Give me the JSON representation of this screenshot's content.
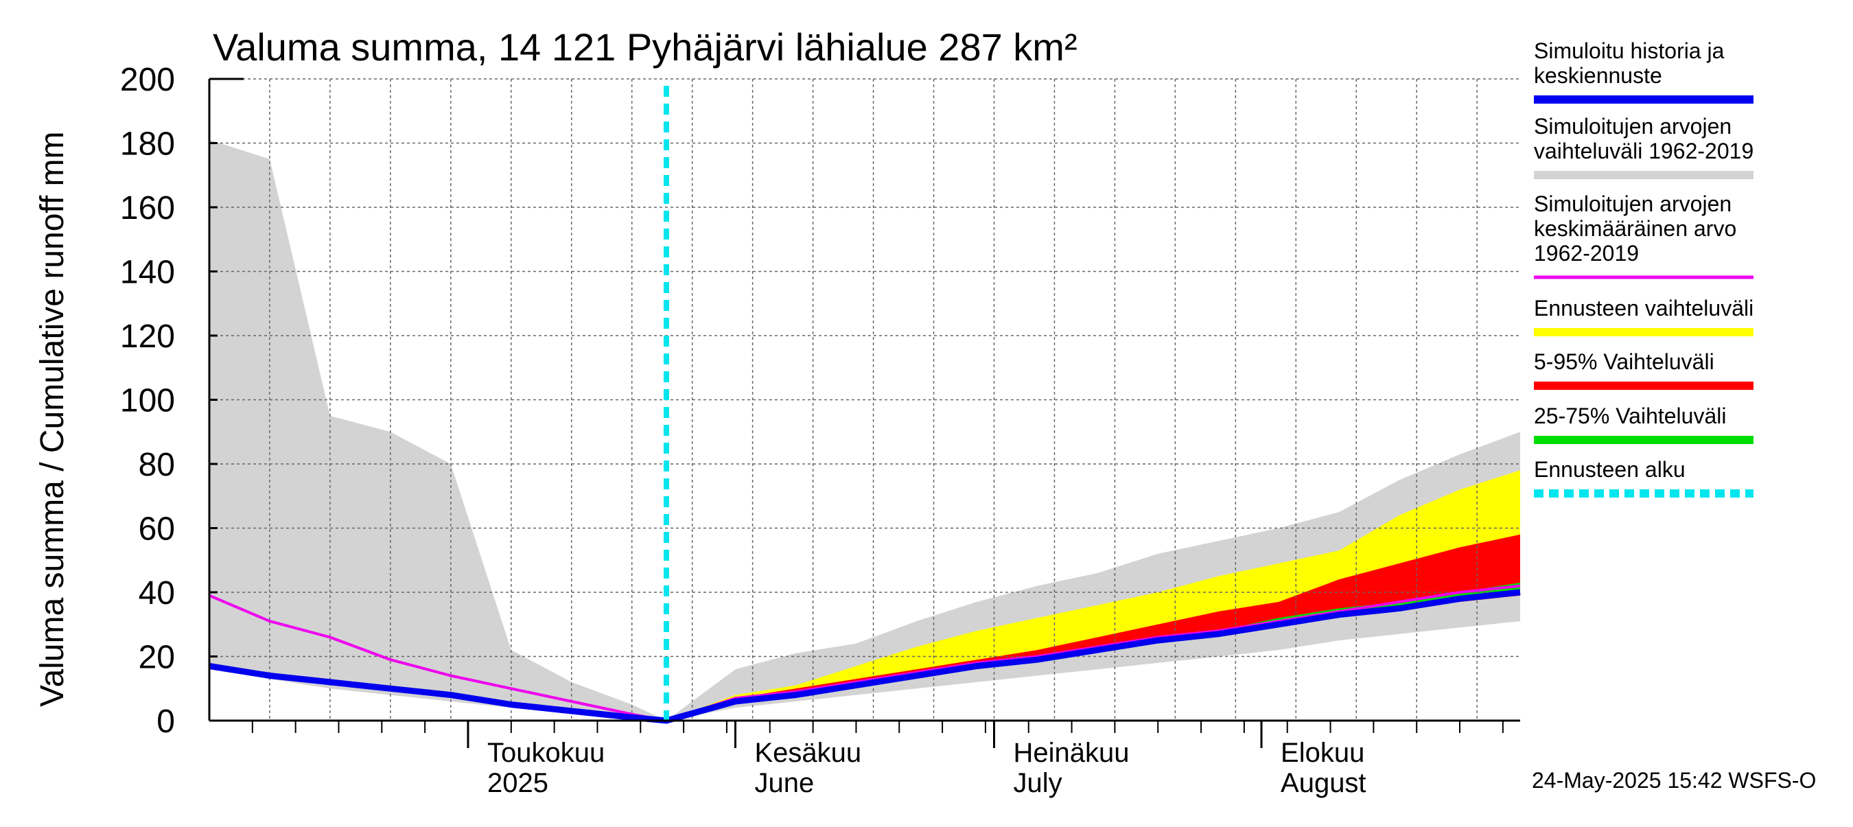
{
  "chart_data": {
    "type": "area",
    "title": "Valuma summa, 14 121 Pyhäjärvi lähialue 287 km²",
    "ylabel": "Valuma summa / Cumulative runoff    mm",
    "ylim": [
      0,
      200
    ],
    "yticks": [
      "0",
      "20",
      "40",
      "60",
      "80",
      "100",
      "120",
      "140",
      "160",
      "180",
      "200"
    ],
    "xlim": [
      "2025-04-01",
      "2025-08-31"
    ],
    "grid": true,
    "legend_placement": "right",
    "months": [
      {
        "date": "2025-05-01",
        "label1": "Toukokuu",
        "label2": "2025"
      },
      {
        "date": "2025-06-01",
        "label1": "Kesäkuu",
        "label2": "June"
      },
      {
        "date": "2025-07-01",
        "label1": "Heinäkuu",
        "label2": "July"
      },
      {
        "date": "2025-08-01",
        "label1": "Elokuu",
        "label2": "August"
      }
    ],
    "forecast_start": "2025-05-24",
    "x": [
      "2025-04-01",
      "2025-04-08",
      "2025-04-15",
      "2025-04-22",
      "2025-04-29",
      "2025-05-06",
      "2025-05-13",
      "2025-05-20",
      "2025-05-24",
      "2025-06-01",
      "2025-06-08",
      "2025-06-15",
      "2025-06-22",
      "2025-06-29",
      "2025-07-06",
      "2025-07-13",
      "2025-07-20",
      "2025-07-27",
      "2025-08-03",
      "2025-08-10",
      "2025-08-17",
      "2025-08-24",
      "2025-08-31"
    ],
    "series": [
      {
        "name": "Simuloitujen arvojen vaihteluväli 1962-2019",
        "kind": "band",
        "color": "#d3d3d3",
        "lower": [
          16,
          13,
          10,
          8,
          6,
          4,
          3,
          1,
          0,
          4,
          6,
          8,
          10,
          12,
          14,
          16,
          18,
          20,
          22,
          25,
          27,
          29,
          31
        ],
        "upper": [
          181,
          175,
          95,
          90,
          80,
          22,
          12,
          5,
          0,
          16,
          21,
          24,
          31,
          37,
          42,
          46,
          52,
          56,
          60,
          65,
          75,
          83,
          90
        ]
      },
      {
        "name": "Ennusteen vaihteluväli",
        "kind": "band",
        "color": "#ffff00",
        "lower": [
          null,
          null,
          null,
          null,
          null,
          null,
          null,
          null,
          0,
          6,
          8,
          11,
          14,
          17,
          19,
          22,
          25,
          27,
          30,
          33,
          35,
          37,
          39
        ],
        "upper": [
          null,
          null,
          null,
          null,
          null,
          null,
          null,
          null,
          0,
          8,
          11,
          17,
          23,
          28,
          32,
          36,
          40,
          45,
          49,
          53,
          64,
          72,
          78
        ]
      },
      {
        "name": "5-95% Vaihteluväli",
        "kind": "band",
        "color": "#ff0000",
        "lower": [
          null,
          null,
          null,
          null,
          null,
          null,
          null,
          null,
          0,
          6,
          8,
          11,
          14,
          17,
          19,
          22,
          25,
          27,
          30,
          33,
          35,
          37,
          39
        ],
        "upper": [
          null,
          null,
          null,
          null,
          null,
          null,
          null,
          null,
          0,
          7,
          10,
          13,
          16,
          19,
          22,
          26,
          30,
          34,
          37,
          44,
          49,
          54,
          58
        ]
      },
      {
        "name": "25-75% Vaihteluväli",
        "kind": "band",
        "color": "#00dd00",
        "lower": [
          null,
          null,
          null,
          null,
          null,
          null,
          null,
          null,
          0,
          6,
          8,
          11,
          14,
          17,
          19,
          22,
          25,
          27,
          30,
          33,
          35,
          38,
          40
        ],
        "upper": [
          null,
          null,
          null,
          null,
          null,
          null,
          null,
          null,
          0,
          6.5,
          9,
          12,
          14.5,
          17.5,
          20,
          23,
          26,
          28,
          32,
          35,
          37,
          40,
          43
        ]
      },
      {
        "name": "Simuloitujen arvojen keskimääräinen arvo 1962-2019",
        "kind": "line",
        "color": "#ee00ee",
        "width": 4,
        "values": [
          39,
          31,
          26,
          19,
          14,
          10,
          6,
          2,
          0,
          7,
          9,
          12,
          15,
          18,
          20,
          23,
          26,
          28,
          31,
          34,
          37,
          40,
          42
        ]
      },
      {
        "name": "Simuloitu historia ja keskiennuste",
        "kind": "line",
        "color": "#0000ee",
        "width": 9,
        "values": [
          17,
          14,
          12,
          10,
          8,
          5,
          3,
          1,
          0,
          6,
          8,
          11,
          14,
          17,
          19,
          22,
          25,
          27,
          30,
          33,
          35,
          38,
          40
        ]
      }
    ],
    "legend": [
      {
        "label": "Simuloitu historia ja keskiennuste",
        "color": "#0000ee",
        "style": "solid"
      },
      {
        "label": "Simuloitujen arvojen vaihteluväli 1962-2019",
        "color": "#d3d3d3",
        "style": "solid"
      },
      {
        "label": "Simuloitujen arvojen keskimääräinen arvo 1962-2019",
        "color": "#ee00ee",
        "style": "thin"
      },
      {
        "label": "Ennusteen vaihteluväli",
        "color": "#ffff00",
        "style": "solid"
      },
      {
        "label": "5-95% Vaihteluväli",
        "color": "#ff0000",
        "style": "solid"
      },
      {
        "label": "25-75% Vaihteluväli",
        "color": "#00dd00",
        "style": "solid"
      },
      {
        "label": "Ennusteen alku",
        "color": "#00e5ee",
        "style": "dashed"
      }
    ],
    "timestamp": "24-May-2025 15:42 WSFS-O"
  }
}
